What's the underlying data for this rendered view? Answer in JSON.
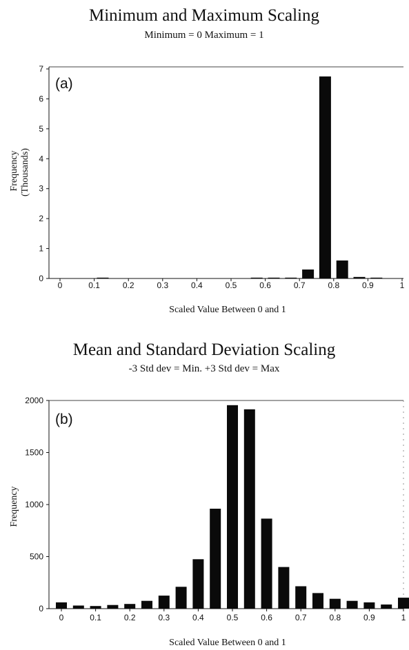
{
  "chart_data": [
    {
      "type": "bar",
      "panel_label": "(a)",
      "title": "Minimum and Maximum Scaling",
      "subtitle": "Minimum = 0  Maximum = 1",
      "xlabel": "Scaled Value Between 0 and 1",
      "ylabel": "Frequency",
      "ylabel_line2": "(Thousands)",
      "xlim": [
        0,
        1
      ],
      "ylim": [
        0,
        7
      ],
      "x_ticks": [
        "0",
        "0.1",
        "0.2",
        "0.3",
        "0.4",
        "0.5",
        "0.6",
        "0.7",
        "0.8",
        "0.9",
        "1"
      ],
      "y_ticks": [
        "0",
        "1",
        "2",
        "3",
        "4",
        "5",
        "6",
        "7"
      ],
      "x": [
        0.025,
        0.075,
        0.125,
        0.175,
        0.225,
        0.275,
        0.325,
        0.375,
        0.425,
        0.475,
        0.525,
        0.575,
        0.625,
        0.675,
        0.725,
        0.775,
        0.825,
        0.875,
        0.925,
        0.975
      ],
      "values": [
        0,
        0,
        0.005,
        0,
        0,
        0,
        0,
        0,
        0,
        0,
        0,
        0.005,
        0.01,
        0.02,
        0.3,
        6.75,
        0.6,
        0.05,
        0.005,
        0
      ]
    },
    {
      "type": "bar",
      "panel_label": "(b)",
      "title": "Mean and Standard Deviation Scaling",
      "subtitle": "-3 Std dev = Min.     +3 Std dev = Max",
      "xlabel": "Scaled Value Between 0 and 1",
      "ylabel": "Frequency",
      "xlim": [
        0,
        1
      ],
      "ylim": [
        0,
        2000
      ],
      "x_ticks": [
        "0",
        "0.1",
        "0.2",
        "0.3",
        "0.4",
        "0.5",
        "0.6",
        "0.7",
        "0.8",
        "0.9",
        "1"
      ],
      "y_ticks": [
        "0",
        "500",
        "1000",
        "1500",
        "2000"
      ],
      "x": [
        0,
        0.05,
        0.1,
        0.15,
        0.2,
        0.25,
        0.3,
        0.35,
        0.4,
        0.45,
        0.5,
        0.55,
        0.6,
        0.65,
        0.7,
        0.75,
        0.8,
        0.85,
        0.9,
        0.95,
        1
      ],
      "values": [
        60,
        30,
        25,
        35,
        45,
        75,
        125,
        210,
        475,
        960,
        1955,
        1915,
        865,
        400,
        215,
        150,
        95,
        75,
        60,
        40,
        105
      ]
    }
  ]
}
